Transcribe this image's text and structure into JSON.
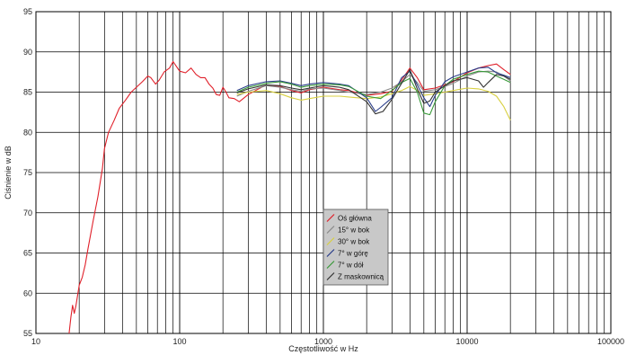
{
  "chart_data": {
    "type": "line",
    "xlabel": "Częstotliwość w Hz",
    "ylabel": "Ciśnienie w dB",
    "xscale": "log",
    "xlim": [
      10,
      100000
    ],
    "ylim": [
      55,
      95
    ],
    "x_ticks": [
      "10",
      "100",
      "1000",
      "10000",
      "100000"
    ],
    "y_ticks": [
      "55",
      "60",
      "65",
      "70",
      "75",
      "80",
      "85",
      "90",
      "95"
    ],
    "grid": true,
    "legend_position": "center",
    "series": [
      {
        "name": "Oś główna",
        "color": "#e0202a",
        "points": [
          [
            17,
            55
          ],
          [
            17.5,
            57
          ],
          [
            18,
            58.5
          ],
          [
            18.5,
            57.5
          ],
          [
            19,
            58.5
          ],
          [
            20,
            61
          ],
          [
            21,
            62
          ],
          [
            22,
            63.5
          ],
          [
            23,
            65.5
          ],
          [
            25,
            69
          ],
          [
            27,
            72
          ],
          [
            29,
            75.5
          ],
          [
            30,
            78
          ],
          [
            32,
            80
          ],
          [
            35,
            81.5
          ],
          [
            38,
            83
          ],
          [
            42,
            84
          ],
          [
            46,
            85
          ],
          [
            50,
            85.6
          ],
          [
            55,
            86.3
          ],
          [
            60,
            87
          ],
          [
            63,
            86.8
          ],
          [
            68,
            86
          ],
          [
            72,
            86.5
          ],
          [
            78,
            87.5
          ],
          [
            85,
            88
          ],
          [
            90,
            88.8
          ],
          [
            95,
            88.2
          ],
          [
            100,
            87.6
          ],
          [
            110,
            87.4
          ],
          [
            120,
            88
          ],
          [
            130,
            87.2
          ],
          [
            140,
            86.8
          ],
          [
            150,
            86.8
          ],
          [
            160,
            86
          ],
          [
            170,
            85.5
          ],
          [
            180,
            84.7
          ],
          [
            190,
            84.6
          ],
          [
            200,
            85.6
          ],
          [
            210,
            85
          ],
          [
            220,
            84.3
          ],
          [
            240,
            84.2
          ],
          [
            260,
            83.8
          ],
          [
            300,
            84.7
          ],
          [
            400,
            85.9
          ],
          [
            500,
            85.7
          ],
          [
            600,
            85.2
          ],
          [
            700,
            84.9
          ],
          [
            800,
            85.3
          ],
          [
            1000,
            85.6
          ],
          [
            1300,
            85.3
          ],
          [
            1500,
            85.2
          ],
          [
            2000,
            84.6
          ],
          [
            2500,
            84.8
          ],
          [
            3000,
            85.1
          ],
          [
            3500,
            86.5
          ],
          [
            4000,
            88
          ],
          [
            4500,
            86.8
          ],
          [
            5000,
            85.3
          ],
          [
            6000,
            85.5
          ],
          [
            7000,
            85.9
          ],
          [
            8000,
            86.3
          ],
          [
            10000,
            87.4
          ],
          [
            12000,
            88
          ],
          [
            14000,
            88.3
          ],
          [
            16000,
            88.5
          ],
          [
            18000,
            87.8
          ],
          [
            20000,
            87.2
          ]
        ]
      },
      {
        "name": "15° w bok",
        "color": "#8a8a8a",
        "points": [
          [
            250,
            84.5
          ],
          [
            300,
            85.1
          ],
          [
            400,
            85.8
          ],
          [
            500,
            85.6
          ],
          [
            600,
            85.3
          ],
          [
            700,
            85.1
          ],
          [
            800,
            85.4
          ],
          [
            1000,
            85.5
          ],
          [
            1300,
            85.2
          ],
          [
            1500,
            85
          ],
          [
            2000,
            84.7
          ],
          [
            2500,
            85
          ],
          [
            3000,
            85.5
          ],
          [
            3500,
            86.3
          ],
          [
            4000,
            87.2
          ],
          [
            4500,
            86.2
          ],
          [
            5000,
            85.1
          ],
          [
            6000,
            85.3
          ],
          [
            7000,
            85.7
          ],
          [
            8000,
            86.1
          ],
          [
            10000,
            87
          ],
          [
            12000,
            87.5
          ],
          [
            14000,
            87.6
          ],
          [
            16000,
            87.5
          ],
          [
            18000,
            87
          ],
          [
            20000,
            86.4
          ]
        ]
      },
      {
        "name": "30° w bok",
        "color": "#d8d040",
        "points": [
          [
            250,
            84.7
          ],
          [
            300,
            85
          ],
          [
            400,
            85.2
          ],
          [
            500,
            84.8
          ],
          [
            600,
            84.3
          ],
          [
            700,
            84
          ],
          [
            800,
            84.2
          ],
          [
            1000,
            84.5
          ],
          [
            1300,
            84.5
          ],
          [
            1500,
            84.4
          ],
          [
            2000,
            84.2
          ],
          [
            2500,
            84.4
          ],
          [
            3000,
            84.8
          ],
          [
            3500,
            85.2
          ],
          [
            4000,
            85.7
          ],
          [
            4500,
            85.2
          ],
          [
            5000,
            84.6
          ],
          [
            6000,
            84.8
          ],
          [
            7000,
            85
          ],
          [
            8000,
            85.2
          ],
          [
            10000,
            85.5
          ],
          [
            12000,
            85.4
          ],
          [
            14000,
            85.1
          ],
          [
            16000,
            84.5
          ],
          [
            18000,
            83.2
          ],
          [
            20000,
            81.5
          ]
        ]
      },
      {
        "name": "7° w górę",
        "color": "#2a3d8a",
        "points": [
          [
            250,
            85.2
          ],
          [
            300,
            85.8
          ],
          [
            400,
            86.3
          ],
          [
            500,
            86.4
          ],
          [
            600,
            86.1
          ],
          [
            700,
            85.8
          ],
          [
            800,
            86
          ],
          [
            1000,
            86.2
          ],
          [
            1300,
            86
          ],
          [
            1500,
            85.8
          ],
          [
            2000,
            84.3
          ],
          [
            2300,
            82.6
          ],
          [
            2500,
            83.1
          ],
          [
            3000,
            84.3
          ],
          [
            3500,
            86.8
          ],
          [
            4000,
            87.6
          ],
          [
            4500,
            85.9
          ],
          [
            5000,
            84.3
          ],
          [
            5500,
            83.2
          ],
          [
            6000,
            84.6
          ],
          [
            7000,
            86.3
          ],
          [
            8000,
            86.9
          ],
          [
            10000,
            87.5
          ],
          [
            12000,
            88
          ],
          [
            14000,
            88.1
          ],
          [
            16000,
            87.4
          ],
          [
            18000,
            87.1
          ],
          [
            20000,
            86.8
          ]
        ]
      },
      {
        "name": "7° w dół",
        "color": "#3a9a3a",
        "points": [
          [
            250,
            85
          ],
          [
            300,
            85.6
          ],
          [
            400,
            86.1
          ],
          [
            500,
            86.3
          ],
          [
            600,
            86
          ],
          [
            700,
            85.6
          ],
          [
            800,
            85.8
          ],
          [
            1000,
            86
          ],
          [
            1300,
            85.9
          ],
          [
            1500,
            85.7
          ],
          [
            2000,
            84.5
          ],
          [
            2500,
            84.2
          ],
          [
            3000,
            85.2
          ],
          [
            3500,
            86.2
          ],
          [
            4000,
            86.7
          ],
          [
            4500,
            85
          ],
          [
            5000,
            82.4
          ],
          [
            5500,
            82.2
          ],
          [
            6000,
            83.8
          ],
          [
            7000,
            85.8
          ],
          [
            8000,
            86.6
          ],
          [
            10000,
            87.2
          ],
          [
            12000,
            87.6
          ],
          [
            14000,
            87.5
          ],
          [
            16000,
            87
          ],
          [
            18000,
            86.6
          ],
          [
            20000,
            86.2
          ]
        ]
      },
      {
        "name": "Z maskownicą",
        "color": "#333333",
        "points": [
          [
            250,
            84.9
          ],
          [
            300,
            85.4
          ],
          [
            400,
            85.9
          ],
          [
            500,
            85.8
          ],
          [
            600,
            85.5
          ],
          [
            700,
            85.3
          ],
          [
            800,
            85.5
          ],
          [
            1000,
            85.8
          ],
          [
            1300,
            85.6
          ],
          [
            1500,
            85.3
          ],
          [
            2000,
            83.8
          ],
          [
            2300,
            82.3
          ],
          [
            2600,
            82.6
          ],
          [
            3000,
            84.1
          ],
          [
            3500,
            86.1
          ],
          [
            4000,
            87.8
          ],
          [
            4500,
            85.4
          ],
          [
            5000,
            83.6
          ],
          [
            5500,
            83.9
          ],
          [
            6000,
            85
          ],
          [
            7000,
            85.8
          ],
          [
            8000,
            86.4
          ],
          [
            10000,
            86.8
          ],
          [
            12000,
            86.4
          ],
          [
            13000,
            85.6
          ],
          [
            14000,
            86.2
          ],
          [
            16000,
            87.2
          ],
          [
            18000,
            87
          ],
          [
            20000,
            86.6
          ]
        ]
      }
    ]
  }
}
